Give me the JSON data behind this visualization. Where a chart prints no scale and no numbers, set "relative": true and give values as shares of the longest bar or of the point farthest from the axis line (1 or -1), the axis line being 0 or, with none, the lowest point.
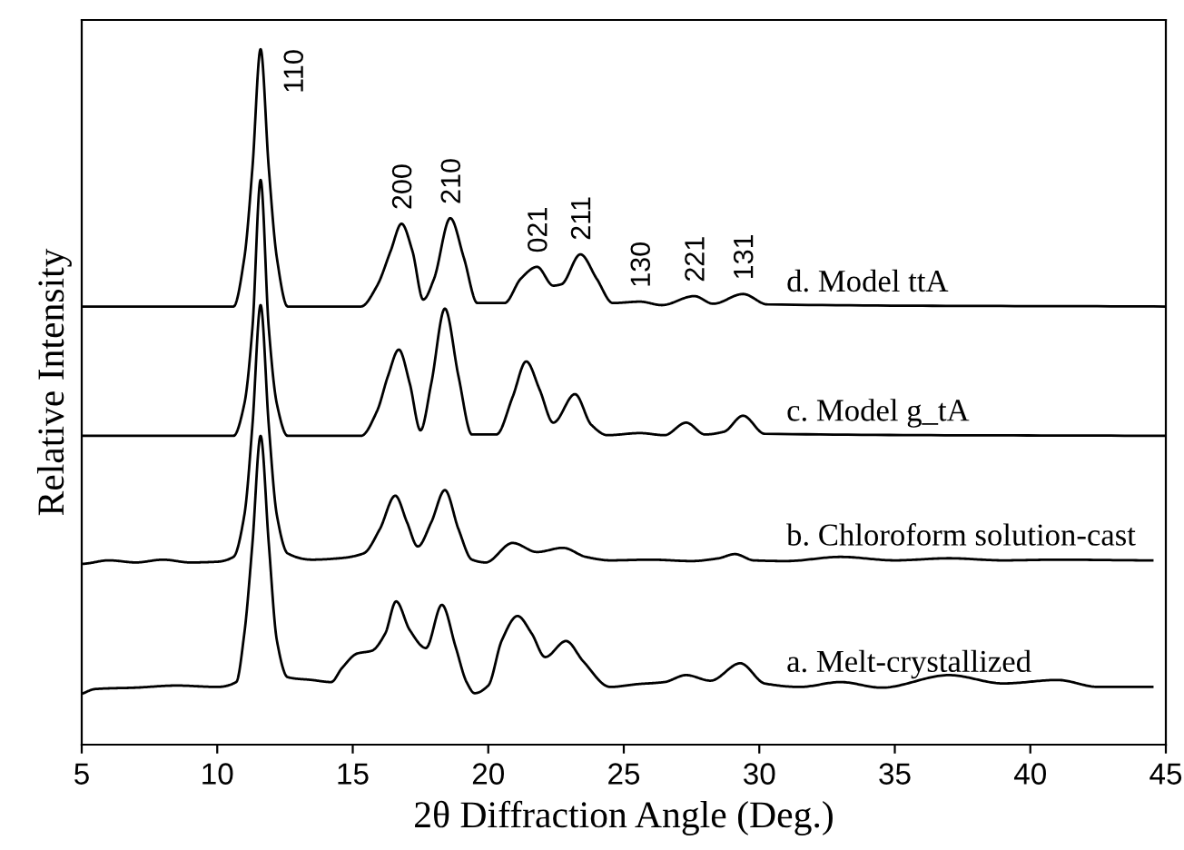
{
  "chart_data": {
    "type": "line",
    "relative": true,
    "xlabel": "2θ Diffraction Angle (Deg.)",
    "ylabel": "Relative Intensity",
    "xlim": [
      5,
      45
    ],
    "xticks": [
      5,
      10,
      15,
      20,
      25,
      30,
      35,
      40,
      45
    ],
    "grid": false,
    "legend": false,
    "marker": "none",
    "line_style": "solid",
    "series": [
      {
        "name": "d. Model ttA",
        "color": "#000000",
        "x": [
          5,
          10.6,
          11.0,
          11.3,
          11.6,
          11.9,
          12.2,
          12.6,
          15.3,
          15.9,
          16.4,
          16.8,
          17.2,
          17.6,
          18.0,
          18.6,
          19.1,
          19.6,
          20.6,
          21.2,
          21.8,
          22.4,
          22.7,
          23.4,
          24.0,
          24.6,
          25.6,
          26.4,
          27.6,
          28.3,
          29.4,
          30.3,
          45
        ],
        "values": [
          0.63,
          0.63,
          0.7,
          0.83,
          1.0,
          0.83,
          0.7,
          0.63,
          0.63,
          0.66,
          0.71,
          0.749,
          0.71,
          0.64,
          0.67,
          0.757,
          0.7,
          0.635,
          0.635,
          0.67,
          0.687,
          0.66,
          0.662,
          0.705,
          0.67,
          0.635,
          0.637,
          0.632,
          0.645,
          0.634,
          0.648,
          0.633,
          0.63
        ]
      },
      {
        "name": "c. Model g_tA",
        "color": "#000000",
        "x": [
          5,
          10.6,
          11.0,
          11.3,
          11.6,
          11.9,
          12.2,
          12.6,
          15.3,
          15.9,
          16.3,
          16.7,
          17.1,
          17.5,
          17.9,
          18.4,
          18.9,
          19.4,
          20.3,
          20.9,
          21.4,
          21.9,
          22.4,
          23.2,
          23.8,
          24.4,
          25.6,
          26.5,
          27.3,
          28.0,
          28.7,
          29.4,
          30.2,
          45
        ],
        "values": [
          0.444,
          0.444,
          0.49,
          0.6,
          0.812,
          0.6,
          0.49,
          0.444,
          0.444,
          0.48,
          0.53,
          0.568,
          0.52,
          0.452,
          0.52,
          0.627,
          0.53,
          0.446,
          0.446,
          0.5,
          0.551,
          0.51,
          0.463,
          0.504,
          0.46,
          0.445,
          0.448,
          0.445,
          0.463,
          0.446,
          0.45,
          0.473,
          0.447,
          0.444
        ]
      },
      {
        "name": "b. Chloroform solution-cast",
        "color": "#000000",
        "x": [
          5,
          6,
          7,
          8,
          9,
          10,
          10.6,
          11.0,
          11.3,
          11.6,
          11.9,
          12.2,
          12.6,
          13.5,
          14.5,
          15.4,
          16.0,
          16.57,
          17.0,
          17.4,
          17.9,
          18.4,
          18.9,
          19.4,
          19.9,
          20.9,
          21.8,
          22.75,
          23.6,
          24.5,
          26,
          27.5,
          28.5,
          29.1,
          29.8,
          31,
          33,
          35,
          37,
          39,
          41,
          44.5
        ],
        "values": [
          0.26,
          0.265,
          0.262,
          0.266,
          0.262,
          0.263,
          0.27,
          0.33,
          0.46,
          0.632,
          0.46,
          0.33,
          0.275,
          0.266,
          0.268,
          0.275,
          0.31,
          0.358,
          0.32,
          0.285,
          0.32,
          0.366,
          0.31,
          0.266,
          0.262,
          0.29,
          0.277,
          0.283,
          0.27,
          0.265,
          0.266,
          0.264,
          0.268,
          0.274,
          0.265,
          0.264,
          0.27,
          0.265,
          0.268,
          0.265,
          0.266,
          0.265
        ]
      },
      {
        "name": "a. Melt-crystallized",
        "color": "#000000",
        "x": [
          5,
          5.5,
          7,
          8.5,
          10,
          10.7,
          11.0,
          11.3,
          11.6,
          11.9,
          12.2,
          12.6,
          13.5,
          14.2,
          14.6,
          15.16,
          15.7,
          16.2,
          16.6,
          17.1,
          17.7,
          18.29,
          18.8,
          19.2,
          19.5,
          20.0,
          20.5,
          21.08,
          21.6,
          22.1,
          22.87,
          23.5,
          24.5,
          25.5,
          26.5,
          27.3,
          28.2,
          29.3,
          30.2,
          31.5,
          33,
          34.5,
          37,
          39,
          41,
          42.5,
          44.5
        ],
        "values": [
          0.073,
          0.08,
          0.082,
          0.085,
          0.083,
          0.09,
          0.16,
          0.29,
          0.444,
          0.29,
          0.15,
          0.097,
          0.093,
          0.09,
          0.11,
          0.131,
          0.135,
          0.16,
          0.206,
          0.165,
          0.139,
          0.201,
          0.14,
          0.09,
          0.074,
          0.085,
          0.15,
          0.185,
          0.16,
          0.126,
          0.149,
          0.12,
          0.083,
          0.087,
          0.09,
          0.1,
          0.092,
          0.117,
          0.088,
          0.083,
          0.09,
          0.082,
          0.1,
          0.088,
          0.093,
          0.083,
          0.083
        ]
      }
    ],
    "annotations": [
      "110",
      "200",
      "210",
      "021",
      "211",
      "130",
      "221",
      "131"
    ]
  }
}
